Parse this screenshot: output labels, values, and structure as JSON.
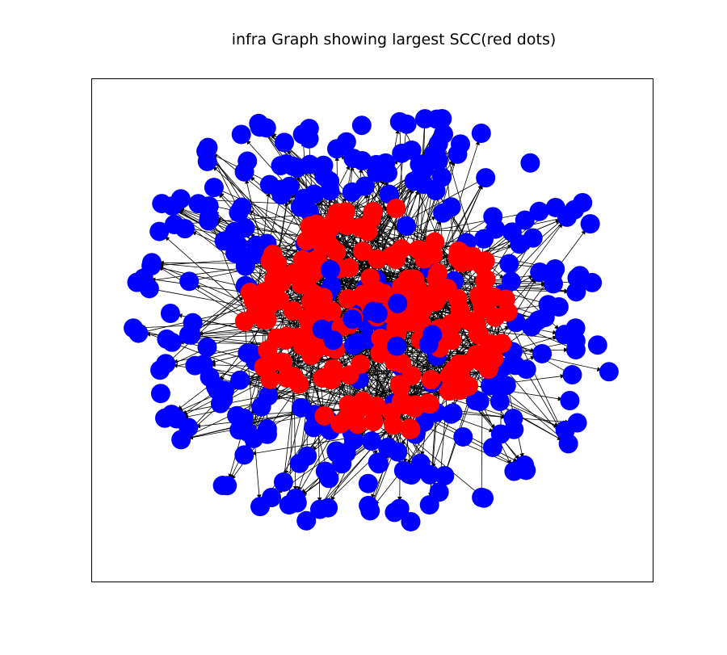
{
  "figure": {
    "title": "infra Graph showing largest SCC(red dots)"
  },
  "graph": {
    "type": "network",
    "directed": true,
    "layout": "spring",
    "node_colors": {
      "largest_scc": "#ff0000",
      "other": "#0000ff"
    },
    "edge_color": "#000000"
  }
}
